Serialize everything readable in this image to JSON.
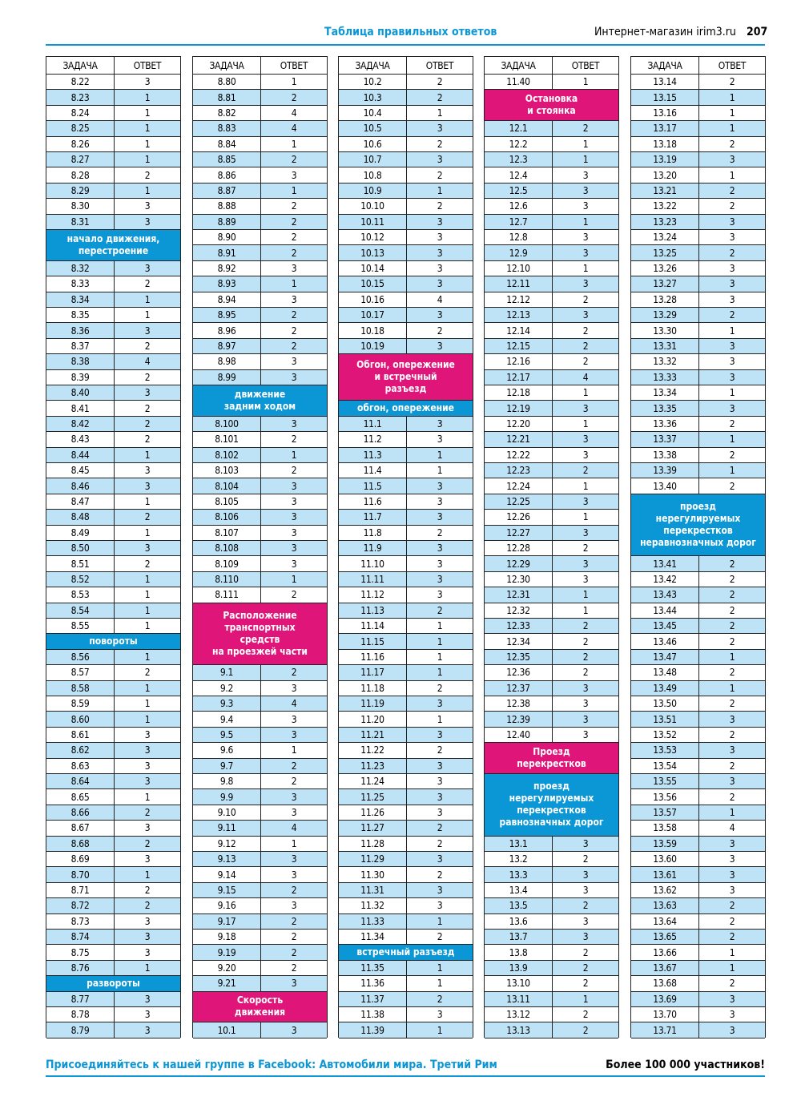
{
  "header": {
    "title": "Таблица правильных ответов",
    "shop": "Интернет-магазин irim3.ru",
    "page": "207"
  },
  "column_headers": [
    "ЗАДАЧА",
    "ОТВЕТ"
  ],
  "columns": [
    [
      [
        "8.22",
        3
      ],
      [
        "8.23",
        1
      ],
      [
        "8.24",
        1
      ],
      [
        "8.25",
        1
      ],
      [
        "8.26",
        1
      ],
      [
        "8.27",
        1
      ],
      [
        "8.28",
        2
      ],
      [
        "8.29",
        1
      ],
      [
        "8.30",
        3
      ],
      [
        "8.31",
        3
      ],
      {
        "section": [
          "начало движения,",
          "перестроение"
        ],
        "color": "#0b96d6"
      },
      [
        "8.32",
        3
      ],
      [
        "8.33",
        2
      ],
      [
        "8.34",
        1
      ],
      [
        "8.35",
        1
      ],
      [
        "8.36",
        3
      ],
      [
        "8.37",
        2
      ],
      [
        "8.38",
        4
      ],
      [
        "8.39",
        2
      ],
      [
        "8.40",
        3
      ],
      [
        "8.41",
        2
      ],
      [
        "8.42",
        2
      ],
      [
        "8.43",
        2
      ],
      [
        "8.44",
        1
      ],
      [
        "8.45",
        3
      ],
      [
        "8.46",
        3
      ],
      [
        "8.47",
        1
      ],
      [
        "8.48",
        2
      ],
      [
        "8.49",
        1
      ],
      [
        "8.50",
        3
      ],
      [
        "8.51",
        2
      ],
      [
        "8.52",
        1
      ],
      [
        "8.53",
        1
      ],
      [
        "8.54",
        1
      ],
      [
        "8.55",
        1
      ],
      {
        "section": [
          "повороты"
        ],
        "color": "#0b96d6"
      },
      [
        "8.56",
        1
      ],
      [
        "8.57",
        2
      ],
      [
        "8.58",
        1
      ],
      [
        "8.59",
        1
      ],
      [
        "8.60",
        1
      ],
      [
        "8.61",
        3
      ],
      [
        "8.62",
        3
      ],
      [
        "8.63",
        3
      ],
      [
        "8.64",
        3
      ],
      [
        "8.65",
        1
      ],
      [
        "8.66",
        2
      ],
      [
        "8.67",
        3
      ],
      [
        "8.68",
        2
      ],
      [
        "8.69",
        3
      ],
      [
        "8.70",
        1
      ],
      [
        "8.71",
        2
      ],
      [
        "8.72",
        2
      ],
      [
        "8.73",
        3
      ],
      [
        "8.74",
        3
      ],
      [
        "8.75",
        3
      ],
      [
        "8.76",
        1
      ],
      {
        "section": [
          "развороты"
        ],
        "color": "#0b96d6"
      },
      [
        "8.77",
        3
      ],
      [
        "8.78",
        3
      ],
      [
        "8.79",
        3
      ]
    ],
    [
      [
        "8.80",
        1
      ],
      [
        "8.81",
        2
      ],
      [
        "8.82",
        4
      ],
      [
        "8.83",
        4
      ],
      [
        "8.84",
        1
      ],
      [
        "8.85",
        2
      ],
      [
        "8.86",
        3
      ],
      [
        "8.87",
        1
      ],
      [
        "8.88",
        2
      ],
      [
        "8.89",
        2
      ],
      [
        "8.90",
        2
      ],
      [
        "8.91",
        2
      ],
      [
        "8.92",
        3
      ],
      [
        "8.93",
        1
      ],
      [
        "8.94",
        3
      ],
      [
        "8.95",
        2
      ],
      [
        "8.96",
        2
      ],
      [
        "8.97",
        2
      ],
      [
        "8.98",
        3
      ],
      [
        "8.99",
        3
      ],
      {
        "section": [
          "движение",
          "задним ходом"
        ],
        "color": "#0b96d6"
      },
      [
        "8.100",
        3
      ],
      [
        "8.101",
        2
      ],
      [
        "8.102",
        1
      ],
      [
        "8.103",
        2
      ],
      [
        "8.104",
        3
      ],
      [
        "8.105",
        3
      ],
      [
        "8.106",
        3
      ],
      [
        "8.107",
        3
      ],
      [
        "8.108",
        3
      ],
      [
        "8.109",
        3
      ],
      [
        "8.110",
        1
      ],
      [
        "8.111",
        2
      ],
      {
        "section": [
          "Расположение",
          "транспортных",
          "средств",
          "на проезжей части"
        ],
        "color": "#e0157a"
      },
      [
        "9.1",
        2
      ],
      [
        "9.2",
        3
      ],
      [
        "9.3",
        4
      ],
      [
        "9.4",
        3
      ],
      [
        "9.5",
        3
      ],
      [
        "9.6",
        1
      ],
      [
        "9.7",
        2
      ],
      [
        "9.8",
        2
      ],
      [
        "9.9",
        3
      ],
      [
        "9.10",
        3
      ],
      [
        "9.11",
        4
      ],
      [
        "9.12",
        1
      ],
      [
        "9.13",
        3
      ],
      [
        "9.14",
        3
      ],
      [
        "9.15",
        2
      ],
      [
        "9.16",
        3
      ],
      [
        "9.17",
        2
      ],
      [
        "9.18",
        2
      ],
      [
        "9.19",
        2
      ],
      [
        "9.20",
        2
      ],
      [
        "9.21",
        3
      ],
      {
        "section": [
          "Скорость",
          "движения"
        ],
        "color": "#e0157a"
      },
      [
        "10.1",
        3
      ]
    ],
    [
      [
        "10.2",
        2
      ],
      [
        "10.3",
        2
      ],
      [
        "10.4",
        1
      ],
      [
        "10.5",
        3
      ],
      [
        "10.6",
        2
      ],
      [
        "10.7",
        3
      ],
      [
        "10.8",
        2
      ],
      [
        "10.9",
        1
      ],
      [
        "10.10",
        2
      ],
      [
        "10.11",
        3
      ],
      [
        "10.12",
        3
      ],
      [
        "10.13",
        3
      ],
      [
        "10.14",
        3
      ],
      [
        "10.15",
        3
      ],
      [
        "10.16",
        4
      ],
      [
        "10.17",
        3
      ],
      [
        "10.18",
        2
      ],
      [
        "10.19",
        3
      ],
      {
        "section": [
          "Обгон, опережение",
          "и встречный",
          "разъезд"
        ],
        "color": "#e0157a"
      },
      {
        "section": [
          "обгон, опережение"
        ],
        "color": "#0b96d6"
      },
      [
        "11.1",
        3
      ],
      [
        "11.2",
        3
      ],
      [
        "11.3",
        1
      ],
      [
        "11.4",
        1
      ],
      [
        "11.5",
        3
      ],
      [
        "11.6",
        3
      ],
      [
        "11.7",
        3
      ],
      [
        "11.8",
        2
      ],
      [
        "11.9",
        3
      ],
      [
        "11.10",
        3
      ],
      [
        "11.11",
        3
      ],
      [
        "11.12",
        3
      ],
      [
        "11.13",
        2
      ],
      [
        "11.14",
        1
      ],
      [
        "11.15",
        1
      ],
      [
        "11.16",
        1
      ],
      [
        "11.17",
        1
      ],
      [
        "11.18",
        2
      ],
      [
        "11.19",
        3
      ],
      [
        "11.20",
        1
      ],
      [
        "11.21",
        3
      ],
      [
        "11.22",
        2
      ],
      [
        "11.23",
        3
      ],
      [
        "11.24",
        3
      ],
      [
        "11.25",
        3
      ],
      [
        "11.26",
        3
      ],
      [
        "11.27",
        2
      ],
      [
        "11.28",
        2
      ],
      [
        "11.29",
        3
      ],
      [
        "11.30",
        2
      ],
      [
        "11.31",
        3
      ],
      [
        "11.32",
        3
      ],
      [
        "11.33",
        1
      ],
      [
        "11.34",
        2
      ],
      {
        "section": [
          "встречный разъезд"
        ],
        "color": "#0b96d6"
      },
      [
        "11.35",
        1
      ],
      [
        "11.36",
        1
      ],
      [
        "11.37",
        2
      ],
      [
        "11.38",
        3
      ],
      [
        "11.39",
        1
      ]
    ],
    [
      [
        "11.40",
        1
      ],
      {
        "section": [
          "Остановка",
          "и стоянка"
        ],
        "color": "#e0157a"
      },
      [
        "12.1",
        2
      ],
      [
        "12.2",
        1
      ],
      [
        "12.3",
        1
      ],
      [
        "12.4",
        3
      ],
      [
        "12.5",
        3
      ],
      [
        "12.6",
        3
      ],
      [
        "12.7",
        1
      ],
      [
        "12.8",
        3
      ],
      [
        "12.9",
        3
      ],
      [
        "12.10",
        1
      ],
      [
        "12.11",
        3
      ],
      [
        "12.12",
        2
      ],
      [
        "12.13",
        3
      ],
      [
        "12.14",
        2
      ],
      [
        "12.15",
        2
      ],
      [
        "12.16",
        2
      ],
      [
        "12.17",
        4
      ],
      [
        "12.18",
        1
      ],
      [
        "12.19",
        3
      ],
      [
        "12.20",
        1
      ],
      [
        "12.21",
        3
      ],
      [
        "12.22",
        3
      ],
      [
        "12.23",
        2
      ],
      [
        "12.24",
        1
      ],
      [
        "12.25",
        3
      ],
      [
        "12.26",
        1
      ],
      [
        "12.27",
        3
      ],
      [
        "12.28",
        2
      ],
      [
        "12.29",
        3
      ],
      [
        "12.30",
        3
      ],
      [
        "12.31",
        1
      ],
      [
        "12.32",
        1
      ],
      [
        "12.33",
        2
      ],
      [
        "12.34",
        2
      ],
      [
        "12.35",
        2
      ],
      [
        "12.36",
        2
      ],
      [
        "12.37",
        3
      ],
      [
        "12.38",
        3
      ],
      [
        "12.39",
        3
      ],
      [
        "12.40",
        3
      ],
      {
        "section": [
          "Проезд",
          "перекрестков"
        ],
        "color": "#e0157a"
      },
      {
        "section": [
          "проезд",
          "нерегулируемых",
          "перекрестков",
          "равнозначных дорог"
        ],
        "color": "#0b96d6"
      },
      [
        "13.1",
        3
      ],
      [
        "13.2",
        2
      ],
      [
        "13.3",
        3
      ],
      [
        "13.4",
        3
      ],
      [
        "13.5",
        2
      ],
      [
        "13.6",
        3
      ],
      [
        "13.7",
        3
      ],
      [
        "13.8",
        2
      ],
      [
        "13.9",
        2
      ],
      [
        "13.10",
        2
      ],
      [
        "13.11",
        1
      ],
      [
        "13.12",
        2
      ],
      [
        "13.13",
        2
      ]
    ],
    [
      [
        "13.14",
        2
      ],
      [
        "13.15",
        1
      ],
      [
        "13.16",
        1
      ],
      [
        "13.17",
        1
      ],
      [
        "13.18",
        2
      ],
      [
        "13.19",
        3
      ],
      [
        "13.20",
        1
      ],
      [
        "13.21",
        2
      ],
      [
        "13.22",
        2
      ],
      [
        "13.23",
        3
      ],
      [
        "13.24",
        3
      ],
      [
        "13.25",
        2
      ],
      [
        "13.26",
        3
      ],
      [
        "13.27",
        3
      ],
      [
        "13.28",
        3
      ],
      [
        "13.29",
        2
      ],
      [
        "13.30",
        1
      ],
      [
        "13.31",
        3
      ],
      [
        "13.32",
        3
      ],
      [
        "13.33",
        3
      ],
      [
        "13.34",
        1
      ],
      [
        "13.35",
        3
      ],
      [
        "13.36",
        2
      ],
      [
        "13.37",
        1
      ],
      [
        "13.38",
        2
      ],
      [
        "13.39",
        1
      ],
      [
        "13.40",
        2
      ],
      {
        "section": [
          "проезд",
          "нерегулируемых",
          "перекрестков",
          "неравнозначных дорог"
        ],
        "color": "#0b96d6"
      },
      [
        "13.41",
        2
      ],
      [
        "13.42",
        2
      ],
      [
        "13.43",
        2
      ],
      [
        "13.44",
        2
      ],
      [
        "13.45",
        2
      ],
      [
        "13.46",
        2
      ],
      [
        "13.47",
        1
      ],
      [
        "13.48",
        2
      ],
      [
        "13.49",
        1
      ],
      [
        "13.50",
        2
      ],
      [
        "13.51",
        3
      ],
      [
        "13.52",
        2
      ],
      [
        "13.53",
        3
      ],
      [
        "13.54",
        2
      ],
      [
        "13.55",
        3
      ],
      [
        "13.56",
        2
      ],
      [
        "13.57",
        1
      ],
      [
        "13.58",
        4
      ],
      [
        "13.59",
        3
      ],
      [
        "13.60",
        3
      ],
      [
        "13.61",
        3
      ],
      [
        "13.62",
        3
      ],
      [
        "13.63",
        2
      ],
      [
        "13.64",
        2
      ],
      [
        "13.65",
        2
      ],
      [
        "13.66",
        1
      ],
      [
        "13.67",
        1
      ],
      [
        "13.68",
        2
      ],
      [
        "13.69",
        3
      ],
      [
        "13.70",
        3
      ],
      [
        "13.71",
        3
      ]
    ]
  ],
  "footer": {
    "left": "Присоединяйтесь к нашей группе в Facebook: Автомобили мира. Третий Рим",
    "right": "Более 100 000 участников!"
  }
}
